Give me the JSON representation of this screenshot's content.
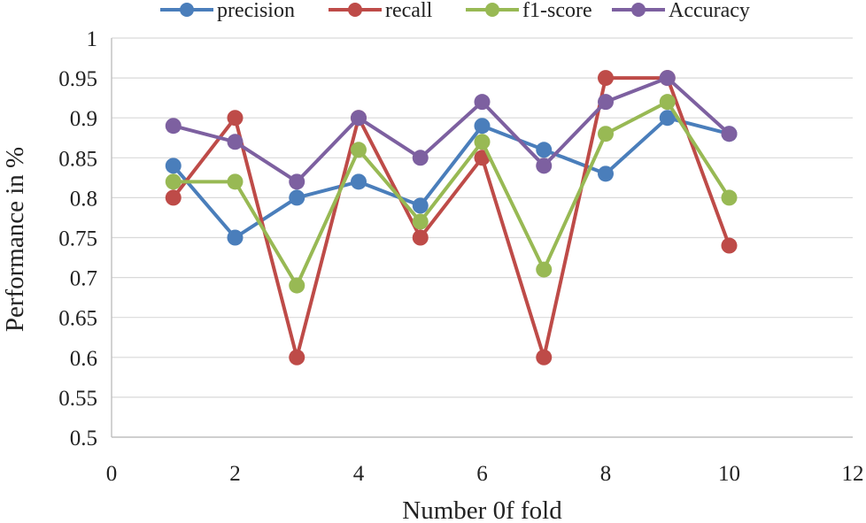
{
  "chart_data": {
    "type": "line",
    "title": "",
    "xlabel": "Number 0f fold",
    "ylabel": "Performance in %",
    "xlim": [
      0,
      12
    ],
    "ylim": [
      0.5,
      1
    ],
    "x_ticks": [
      "0",
      "2",
      "4",
      "6",
      "8",
      "10",
      "12"
    ],
    "y_ticks": [
      "0.5",
      "0.55",
      "0.6",
      "0.65",
      "0.7",
      "0.75",
      "0.8",
      "0.85",
      "0.9",
      "0.95",
      "1"
    ],
    "grid": "horizontal",
    "legend_position": "top",
    "x": [
      1,
      2,
      3,
      4,
      5,
      6,
      7,
      8,
      9,
      10
    ],
    "series": [
      {
        "name": "precision",
        "color": "#4a7ebb",
        "values": [
          0.84,
          0.75,
          0.8,
          0.82,
          0.79,
          0.89,
          0.86,
          0.83,
          0.9,
          0.88
        ]
      },
      {
        "name": "recall",
        "color": "#be4b48",
        "values": [
          0.8,
          0.9,
          0.6,
          0.9,
          0.75,
          0.85,
          0.6,
          0.95,
          0.95,
          0.74
        ]
      },
      {
        "name": "f1-score",
        "color": "#98b954",
        "values": [
          0.82,
          0.82,
          0.69,
          0.86,
          0.77,
          0.87,
          0.71,
          0.88,
          0.92,
          0.8
        ]
      },
      {
        "name": "Accuracy",
        "color": "#7d60a0",
        "values": [
          0.89,
          0.87,
          0.82,
          0.9,
          0.85,
          0.92,
          0.84,
          0.92,
          0.95,
          0.88
        ]
      }
    ]
  }
}
